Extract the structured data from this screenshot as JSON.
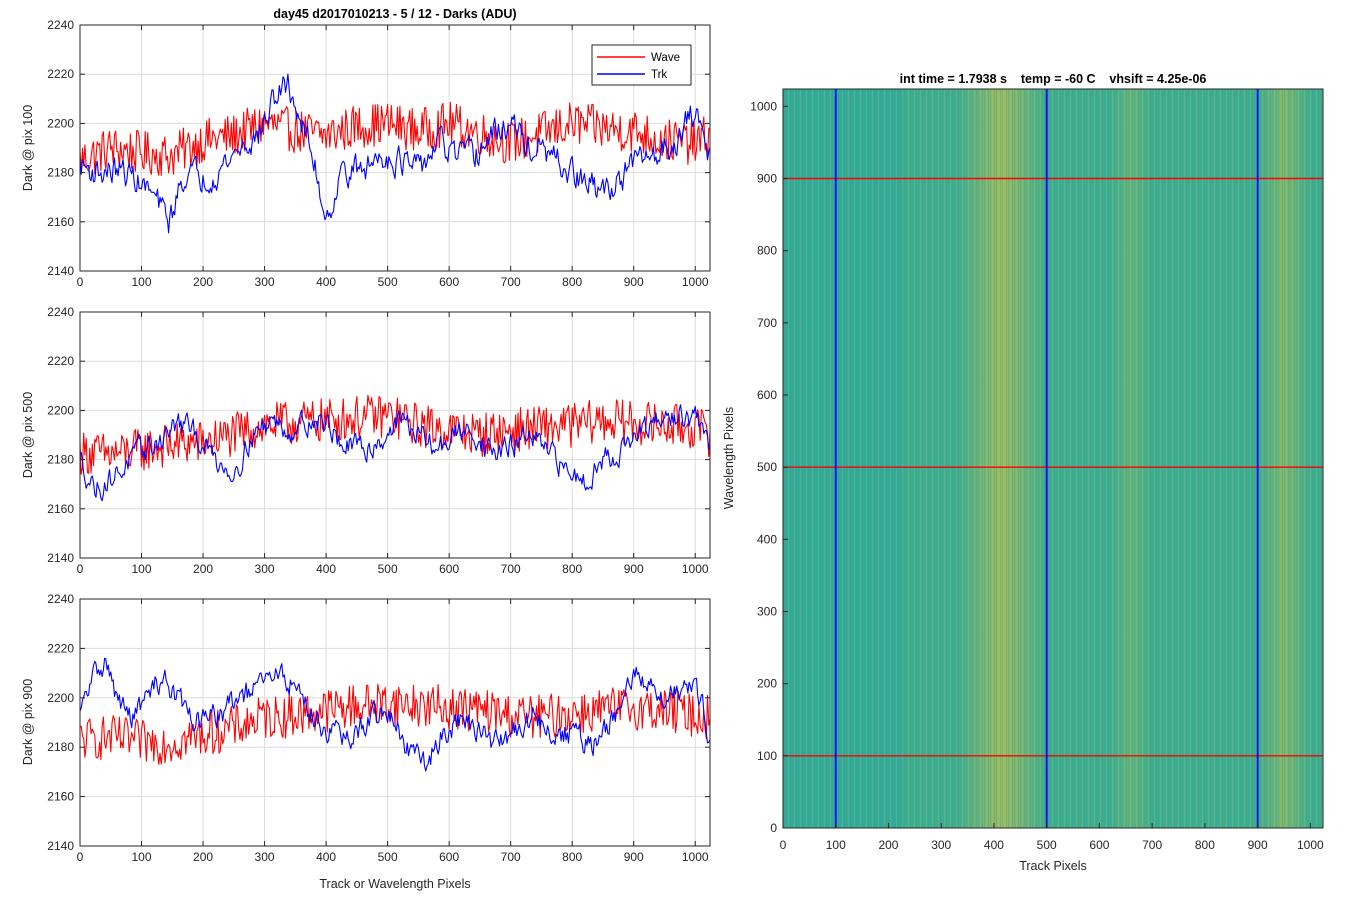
{
  "figure": {
    "left_title": "day45 d2017010213 - 5 / 12 - Darks (ADU)",
    "right_title": "int time = 1.7938 s    temp = -60 C    vhsift = 4.25e-06"
  },
  "colors": {
    "wave": "#ff0000",
    "trk": "#0000ff",
    "grid": "#dcdcdc",
    "axis": "#262626",
    "image_base": "#3fae8f",
    "image_warm": "#b7bf4a",
    "image_cool": "#1fa3a6"
  },
  "chart_data": [
    {
      "type": "line",
      "panel": "top",
      "title": "day45 d2017010213 - 5 / 12 - Darks (ADU)",
      "xlabel": "",
      "ylabel": "Dark @ pix 100",
      "xlim": [
        0,
        1024
      ],
      "ylim": [
        2140,
        2240
      ],
      "xticks": [
        0,
        100,
        200,
        300,
        400,
        500,
        600,
        700,
        800,
        900,
        1000
      ],
      "yticks": [
        2140,
        2160,
        2180,
        2200,
        2220,
        2240
      ],
      "grid": true,
      "legend": {
        "position": "top-right",
        "entries": [
          "Wave",
          "Trk"
        ]
      },
      "series": [
        {
          "name": "Wave",
          "color": "#ff0000",
          "x": [
            0,
            50,
            100,
            150,
            200,
            250,
            300,
            350,
            400,
            450,
            500,
            550,
            600,
            650,
            700,
            750,
            800,
            850,
            900,
            950,
            1000,
            1024
          ],
          "y": [
            2185,
            2190,
            2188,
            2187,
            2193,
            2195,
            2200,
            2197,
            2195,
            2199,
            2200,
            2197,
            2200,
            2196,
            2192,
            2196,
            2200,
            2198,
            2197,
            2193,
            2192,
            2195
          ]
        },
        {
          "name": "Trk",
          "color": "#0000ff",
          "x": [
            0,
            30,
            60,
            90,
            120,
            145,
            170,
            200,
            230,
            260,
            290,
            320,
            340,
            360,
            380,
            400,
            430,
            460,
            490,
            520,
            550,
            580,
            610,
            640,
            670,
            700,
            730,
            760,
            790,
            820,
            850,
            880,
            910,
            940,
            970,
            1000,
            1024
          ],
          "y": [
            2183,
            2180,
            2181,
            2178,
            2170,
            2160,
            2180,
            2178,
            2182,
            2190,
            2195,
            2212,
            2215,
            2200,
            2185,
            2162,
            2182,
            2180,
            2188,
            2185,
            2180,
            2192,
            2187,
            2186,
            2195,
            2200,
            2190,
            2187,
            2181,
            2176,
            2172,
            2178,
            2185,
            2188,
            2194,
            2205,
            2188
          ]
        }
      ]
    },
    {
      "type": "line",
      "panel": "middle",
      "xlabel": "",
      "ylabel": "Dark @ pix 500",
      "xlim": [
        0,
        1024
      ],
      "ylim": [
        2140,
        2240
      ],
      "xticks": [
        0,
        100,
        200,
        300,
        400,
        500,
        600,
        700,
        800,
        900,
        1000
      ],
      "yticks": [
        2140,
        2160,
        2180,
        2200,
        2220,
        2240
      ],
      "grid": true,
      "series": [
        {
          "name": "Wave",
          "color": "#ff0000",
          "x": [
            0,
            50,
            100,
            150,
            200,
            250,
            300,
            350,
            400,
            450,
            500,
            550,
            600,
            650,
            700,
            750,
            800,
            850,
            900,
            950,
            1000,
            1024
          ],
          "y": [
            2183,
            2182,
            2184,
            2186,
            2187,
            2190,
            2194,
            2195,
            2196,
            2197,
            2198,
            2194,
            2192,
            2190,
            2192,
            2193,
            2194,
            2196,
            2195,
            2194,
            2193,
            2190
          ]
        },
        {
          "name": "Trk",
          "color": "#0000ff",
          "x": [
            0,
            25,
            50,
            75,
            100,
            130,
            160,
            190,
            220,
            250,
            280,
            310,
            340,
            370,
            400,
            430,
            460,
            490,
            520,
            550,
            580,
            610,
            640,
            670,
            700,
            730,
            760,
            790,
            820,
            850,
            880,
            910,
            940,
            970,
            1000,
            1024
          ],
          "y": [
            2180,
            2168,
            2172,
            2178,
            2183,
            2188,
            2195,
            2190,
            2180,
            2175,
            2190,
            2196,
            2192,
            2196,
            2195,
            2185,
            2184,
            2188,
            2197,
            2190,
            2184,
            2190,
            2192,
            2182,
            2185,
            2190,
            2182,
            2176,
            2172,
            2180,
            2184,
            2190,
            2195,
            2198,
            2196,
            2186
          ]
        }
      ]
    },
    {
      "type": "line",
      "panel": "bottom",
      "xlabel": "Track or Wavelength Pixels",
      "ylabel": "Dark @ pix 900",
      "xlim": [
        0,
        1024
      ],
      "ylim": [
        2140,
        2240
      ],
      "xticks": [
        0,
        100,
        200,
        300,
        400,
        500,
        600,
        700,
        800,
        900,
        1000
      ],
      "yticks": [
        2140,
        2160,
        2180,
        2200,
        2220,
        2240
      ],
      "grid": true,
      "series": [
        {
          "name": "Wave",
          "color": "#ff0000",
          "x": [
            0,
            50,
            100,
            150,
            200,
            250,
            300,
            350,
            400,
            450,
            500,
            550,
            600,
            650,
            700,
            750,
            800,
            850,
            900,
            950,
            1000,
            1024
          ],
          "y": [
            2183,
            2184,
            2182,
            2182,
            2185,
            2188,
            2192,
            2193,
            2195,
            2197,
            2198,
            2197,
            2196,
            2195,
            2193,
            2192,
            2194,
            2195,
            2196,
            2195,
            2193,
            2192
          ]
        },
        {
          "name": "Trk",
          "color": "#0000ff",
          "x": [
            0,
            20,
            40,
            60,
            80,
            100,
            120,
            140,
            170,
            200,
            230,
            260,
            290,
            320,
            350,
            380,
            410,
            440,
            470,
            500,
            530,
            560,
            590,
            620,
            650,
            680,
            710,
            740,
            770,
            800,
            830,
            860,
            890,
            910,
            940,
            970,
            1000,
            1024
          ],
          "y": [
            2192,
            2208,
            2215,
            2200,
            2192,
            2196,
            2205,
            2208,
            2195,
            2190,
            2194,
            2200,
            2204,
            2210,
            2205,
            2192,
            2186,
            2182,
            2192,
            2195,
            2180,
            2172,
            2186,
            2192,
            2186,
            2180,
            2188,
            2192,
            2185,
            2186,
            2180,
            2188,
            2202,
            2212,
            2198,
            2205,
            2206,
            2185
          ]
        }
      ]
    },
    {
      "type": "heatmap",
      "panel": "image",
      "title": "int time = 1.7938 s    temp = -60 C    vhsift = 4.25e-06",
      "xlabel": "Track Pixels",
      "ylabel": "Wavelength Pixels",
      "xlim": [
        0,
        1024
      ],
      "ylim": [
        0,
        1024
      ],
      "xticks": [
        0,
        100,
        200,
        300,
        400,
        500,
        600,
        700,
        800,
        900,
        1000
      ],
      "yticks": [
        0,
        100,
        200,
        300,
        400,
        500,
        600,
        700,
        800,
        900,
        1000
      ],
      "warm_bands_x": [
        [
          330,
          500,
          0.7
        ],
        [
          900,
          1000,
          0.5
        ],
        [
          620,
          700,
          0.3
        ]
      ],
      "vertical_markers": {
        "color": "#0000ff",
        "x": [
          100,
          500,
          900
        ]
      },
      "horizontal_markers": {
        "color": "#ff0000",
        "y": [
          100,
          500,
          900
        ]
      }
    }
  ]
}
